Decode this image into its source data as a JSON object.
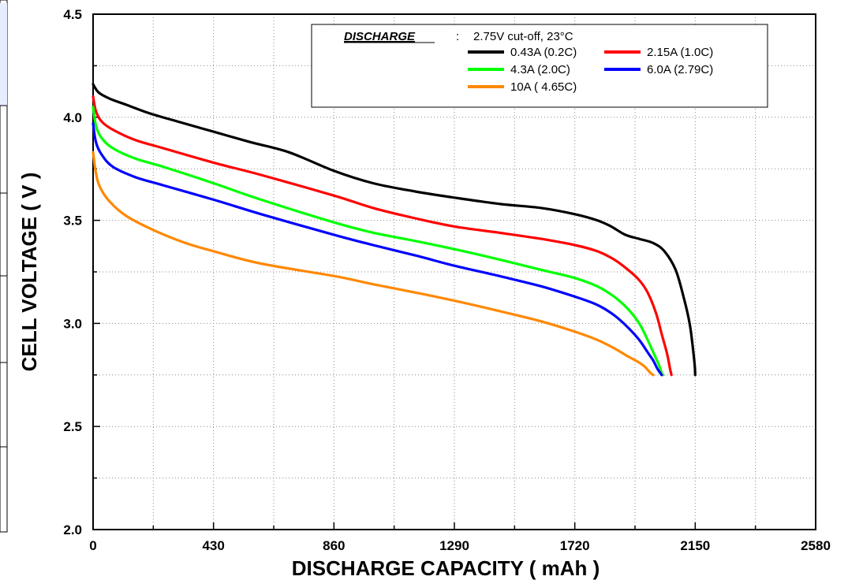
{
  "chart_data": {
    "type": "line",
    "xlabel": "DISCHARGE CAPACITY ( mAh )",
    "ylabel": "CELL VOLTAGE ( V )",
    "xlim": [
      0,
      2580
    ],
    "ylim": [
      2.0,
      4.5
    ],
    "xticks": [
      0,
      430,
      860,
      1290,
      1720,
      2150,
      2580
    ],
    "xtick_labels": [
      "0",
      "430",
      "860",
      "1290",
      "1720",
      "2150",
      "2580"
    ],
    "yticks": [
      2.0,
      2.5,
      3.0,
      3.5,
      4.0,
      4.5
    ],
    "ytick_labels": [
      "2.0",
      "2.5",
      "3.0",
      "3.5",
      "4.0",
      "4.5"
    ],
    "grid": true,
    "legend": {
      "placement": "top-right",
      "heading": "DISCHARGE",
      "separator": ":",
      "condition": "2.75V cut-off, 23°C"
    },
    "series": [
      {
        "name": "0.43A (0.2C)",
        "color": "#000000",
        "x": [
          0,
          20,
          60,
          120,
          200,
          300,
          430,
          560,
          700,
          860,
          1000,
          1150,
          1290,
          1450,
          1600,
          1720,
          1800,
          1850,
          1900,
          1950,
          2000,
          2040,
          2080,
          2110,
          2130,
          2140,
          2148,
          2150
        ],
        "y": [
          4.16,
          4.12,
          4.09,
          4.06,
          4.02,
          3.98,
          3.93,
          3.88,
          3.83,
          3.74,
          3.68,
          3.64,
          3.61,
          3.58,
          3.56,
          3.53,
          3.5,
          3.47,
          3.43,
          3.41,
          3.39,
          3.35,
          3.26,
          3.12,
          3.0,
          2.9,
          2.8,
          2.75
        ]
      },
      {
        "name": "2.15A (1.0C)",
        "color": "#ff0000",
        "x": [
          0,
          10,
          30,
          70,
          150,
          250,
          430,
          600,
          860,
          1000,
          1150,
          1290,
          1450,
          1600,
          1720,
          1800,
          1860,
          1910,
          1950,
          1980,
          2010,
          2030,
          2050,
          2060,
          2065
        ],
        "y": [
          4.1,
          4.03,
          3.98,
          3.94,
          3.89,
          3.85,
          3.78,
          3.72,
          3.62,
          3.56,
          3.51,
          3.47,
          3.44,
          3.41,
          3.38,
          3.35,
          3.31,
          3.26,
          3.21,
          3.15,
          3.05,
          2.95,
          2.85,
          2.78,
          2.75
        ]
      },
      {
        "name": "4.3A (2.0C)",
        "color": "#00ff00",
        "x": [
          0,
          10,
          30,
          70,
          150,
          250,
          430,
          600,
          860,
          1000,
          1150,
          1290,
          1450,
          1600,
          1720,
          1800,
          1860,
          1910,
          1950,
          1980,
          2000,
          2020,
          2030,
          2035
        ],
        "y": [
          4.05,
          3.96,
          3.9,
          3.85,
          3.8,
          3.76,
          3.68,
          3.6,
          3.49,
          3.44,
          3.4,
          3.36,
          3.31,
          3.26,
          3.22,
          3.18,
          3.13,
          3.07,
          3.0,
          2.92,
          2.86,
          2.8,
          2.76,
          2.75
        ]
      },
      {
        "name": "6.0A (2.79C)",
        "color": "#0000ff",
        "x": [
          0,
          10,
          30,
          70,
          150,
          250,
          430,
          600,
          860,
          1000,
          1150,
          1290,
          1450,
          1600,
          1720,
          1800,
          1860,
          1910,
          1950,
          1980,
          2000,
          2015,
          2025,
          2030
        ],
        "y": [
          3.97,
          3.88,
          3.82,
          3.76,
          3.71,
          3.67,
          3.6,
          3.53,
          3.43,
          3.38,
          3.33,
          3.28,
          3.23,
          3.18,
          3.13,
          3.09,
          3.04,
          2.98,
          2.92,
          2.86,
          2.82,
          2.78,
          2.76,
          2.75
        ]
      },
      {
        "name": "10A ( 4.65C)",
        "color": "#ff8800",
        "x": [
          0,
          10,
          25,
          60,
          120,
          220,
          330,
          430,
          600,
          860,
          1000,
          1150,
          1290,
          1450,
          1600,
          1720,
          1800,
          1860,
          1910,
          1950,
          1970,
          1990,
          2000
        ],
        "y": [
          3.83,
          3.73,
          3.66,
          3.59,
          3.52,
          3.45,
          3.39,
          3.35,
          3.29,
          3.23,
          3.19,
          3.15,
          3.11,
          3.06,
          3.01,
          2.96,
          2.92,
          2.88,
          2.84,
          2.81,
          2.79,
          2.76,
          2.75
        ]
      }
    ]
  }
}
